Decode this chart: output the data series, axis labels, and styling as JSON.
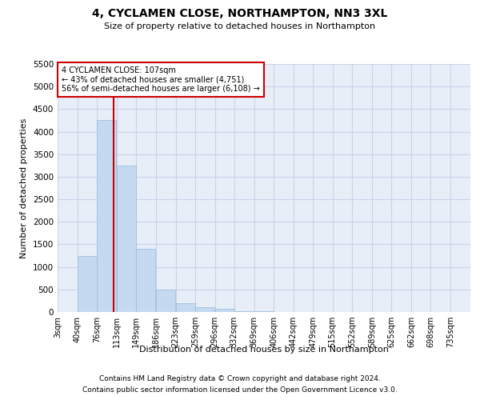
{
  "title": "4, CYCLAMEN CLOSE, NORTHAMPTON, NN3 3XL",
  "subtitle": "Size of property relative to detached houses in Northampton",
  "xlabel": "Distribution of detached houses by size in Northampton",
  "ylabel": "Number of detached properties",
  "footnote1": "Contains HM Land Registry data © Crown copyright and database right 2024.",
  "footnote2": "Contains public sector information licensed under the Open Government Licence v3.0.",
  "annotation_title": "4 CYCLAMEN CLOSE: 107sqm",
  "annotation_line1": "← 43% of detached houses are smaller (4,751)",
  "annotation_line2": "56% of semi-detached houses are larger (6,108) →",
  "property_size": 107,
  "bar_color": "#c5d9f0",
  "bar_edge_color": "#a0c0e0",
  "vline_color": "#cc0000",
  "annotation_box_color": "#cc0000",
  "plot_bg_color": "#e8eef8",
  "background_color": "#ffffff",
  "grid_color": "#c8d4e8",
  "categories": [
    "3sqm",
    "40sqm",
    "76sqm",
    "113sqm",
    "149sqm",
    "186sqm",
    "223sqm",
    "259sqm",
    "296sqm",
    "332sqm",
    "369sqm",
    "406sqm",
    "442sqm",
    "479sqm",
    "515sqm",
    "552sqm",
    "589sqm",
    "625sqm",
    "662sqm",
    "698sqm",
    "735sqm"
  ],
  "bin_edges": [
    3,
    40,
    76,
    113,
    149,
    186,
    223,
    259,
    296,
    332,
    369,
    406,
    442,
    479,
    515,
    552,
    589,
    625,
    662,
    698,
    735
  ],
  "bin_width": 37,
  "values": [
    0,
    1250,
    4250,
    3250,
    1400,
    500,
    200,
    100,
    75,
    25,
    15,
    0,
    0,
    0,
    0,
    0,
    0,
    0,
    0,
    0,
    0
  ],
  "ylim": [
    0,
    5500
  ],
  "yticks": [
    0,
    500,
    1000,
    1500,
    2000,
    2500,
    3000,
    3500,
    4000,
    4500,
    5000,
    5500
  ]
}
